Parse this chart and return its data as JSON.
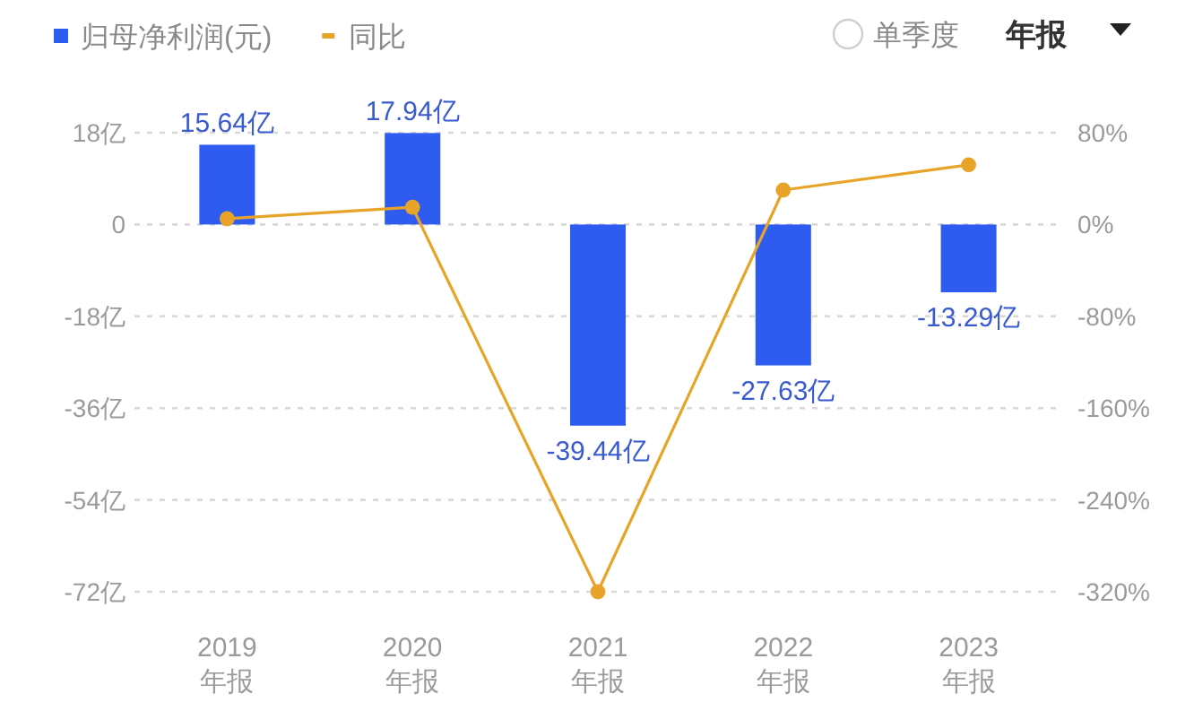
{
  "chart_data": {
    "type": "bar",
    "categories": [
      "2019\n年报",
      "2020\n年报",
      "2021\n年报",
      "2022\n年报",
      "2023\n年报"
    ],
    "series": [
      {
        "name": "归母净利润(元)",
        "color": "#2f5cf0",
        "values": [
          15.64,
          17.94,
          -39.44,
          -27.63,
          -13.29
        ],
        "value_labels": [
          "15.64亿",
          "17.94亿",
          "-39.44亿",
          "-27.63亿",
          "-13.29亿"
        ]
      },
      {
        "name": "同比",
        "type": "line",
        "axis": "y2",
        "color": "#e8a428",
        "values": [
          5,
          15,
          -320,
          30,
          52
        ]
      }
    ],
    "ylim": [
      -72,
      18
    ],
    "yticks": [
      {
        "value": -72,
        "label": "-72亿"
      },
      {
        "value": -54,
        "label": "-54亿"
      },
      {
        "value": -36,
        "label": "-36亿"
      },
      {
        "value": -18,
        "label": "-18亿"
      },
      0,
      {
        "value": 18,
        "label": "18亿"
      }
    ],
    "y2lim": [
      -320,
      80
    ],
    "y2ticks": [
      {
        "value": -320,
        "label": "-320%"
      },
      {
        "value": -240,
        "label": "-240%"
      },
      {
        "value": -160,
        "label": "-160%"
      },
      {
        "value": -80,
        "label": "-80%"
      },
      {
        "value": 0,
        "label": "0%"
      },
      {
        "value": 80,
        "label": "80%"
      }
    ],
    "grid": "y",
    "legend": "top left",
    "marker": "circle",
    "annotations": [
      "单季度",
      "年报"
    ]
  }
}
